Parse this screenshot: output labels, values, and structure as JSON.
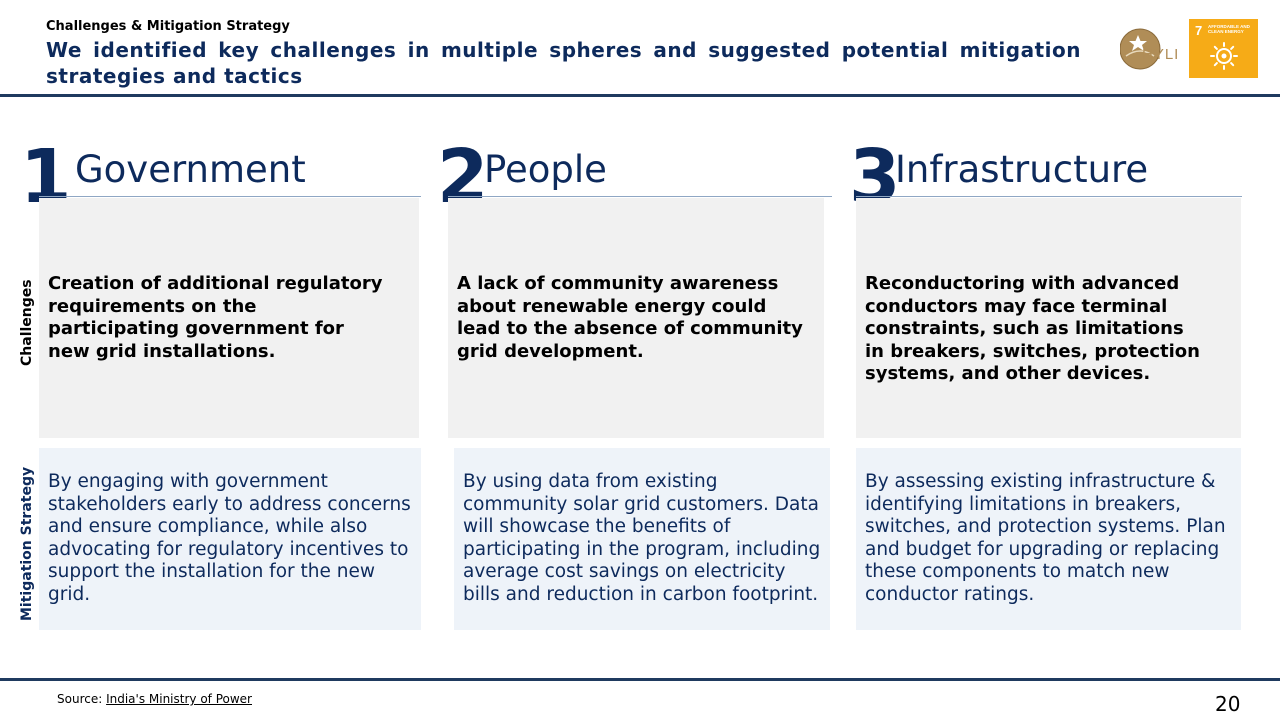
{
  "header": {
    "kicker": "Challenges & Mitigation Strategy",
    "headline": "We identified key challenges in multiple spheres and suggested potential mitigation strategies and tactics",
    "logo_text": "HYLI",
    "sdg_number": "7",
    "sdg_label": "AFFORDABLE AND CLEAN ENERGY",
    "colors": {
      "navy": "#0d2a5c",
      "sdg_orange": "#f6ab17"
    }
  },
  "row_labels": {
    "challenges": "Challenges",
    "mitigation": "Mitigation Strategy"
  },
  "columns": [
    {
      "number": "1",
      "title": "Government",
      "challenge": "Creation of additional regulatory requirements on the participating government for new grid installations.",
      "mitigation": "By engaging with government stakeholders early to address concerns and ensure compliance, while also advocating for regulatory incentives to support the installation for the new grid."
    },
    {
      "number": "2",
      "title": "People",
      "challenge": "A lack of community awareness about renewable energy could lead to the absence of community grid development.",
      "mitigation": "By using data from existing community solar grid customers. Data will showcase the benefits of participating in the program, including average cost savings on electricity bills and reduction in carbon footprint."
    },
    {
      "number": "3",
      "title": "Infrastructure",
      "challenge": "Reconductoring with advanced conductors may face terminal constraints, such as limitations in breakers, switches, protection systems, and other devices.",
      "mitigation": "By assessing existing infrastructure & identifying limitations in breakers, switches, and protection systems. Plan and budget for upgrading or replacing these components to match new conductor ratings."
    }
  ],
  "footer": {
    "source_prefix": "Source: ",
    "source_link": "India's Ministry of Power",
    "page_number": "20"
  }
}
